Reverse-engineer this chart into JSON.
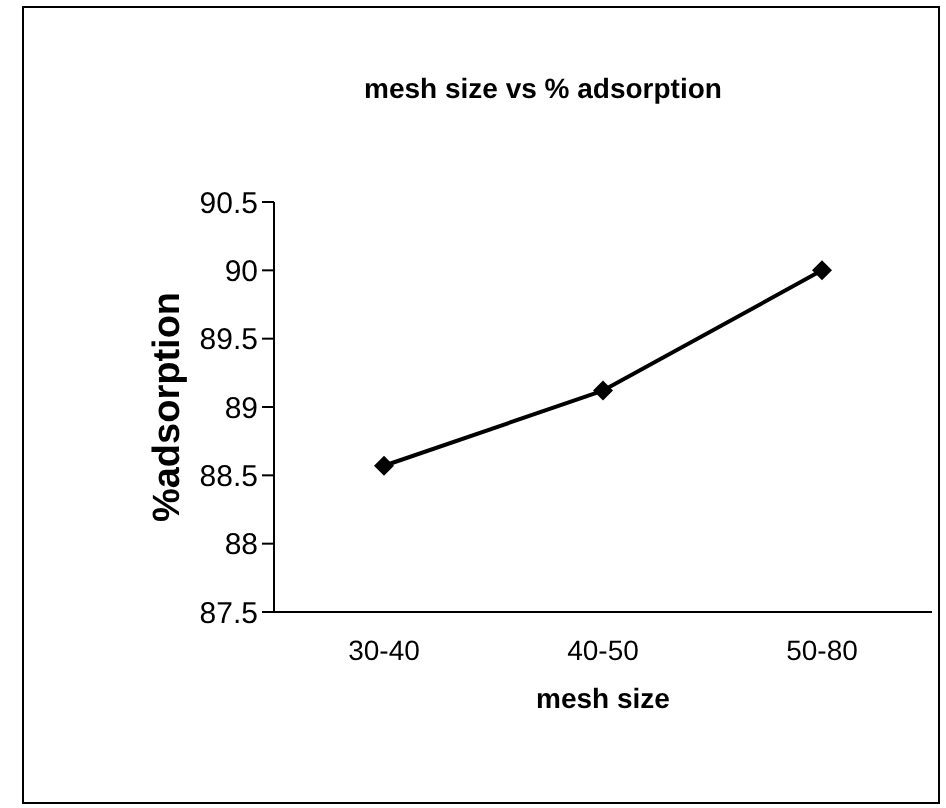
{
  "chart_data": {
    "type": "line",
    "title": "mesh size vs % adsorption",
    "xlabel": "mesh size",
    "ylabel": "%adsorption",
    "categories": [
      "30-40",
      "40-50",
      "50-80"
    ],
    "series": [
      {
        "color": "#000000",
        "values": [
          88.57,
          89.12,
          90.0
        ]
      }
    ],
    "ylim": [
      87.5,
      90.5
    ],
    "yticks": [
      87.5,
      88,
      88.5,
      89,
      89.5,
      90,
      90.5
    ],
    "grid": false,
    "legend": false,
    "marker": "diamond",
    "line_style": "solid"
  }
}
